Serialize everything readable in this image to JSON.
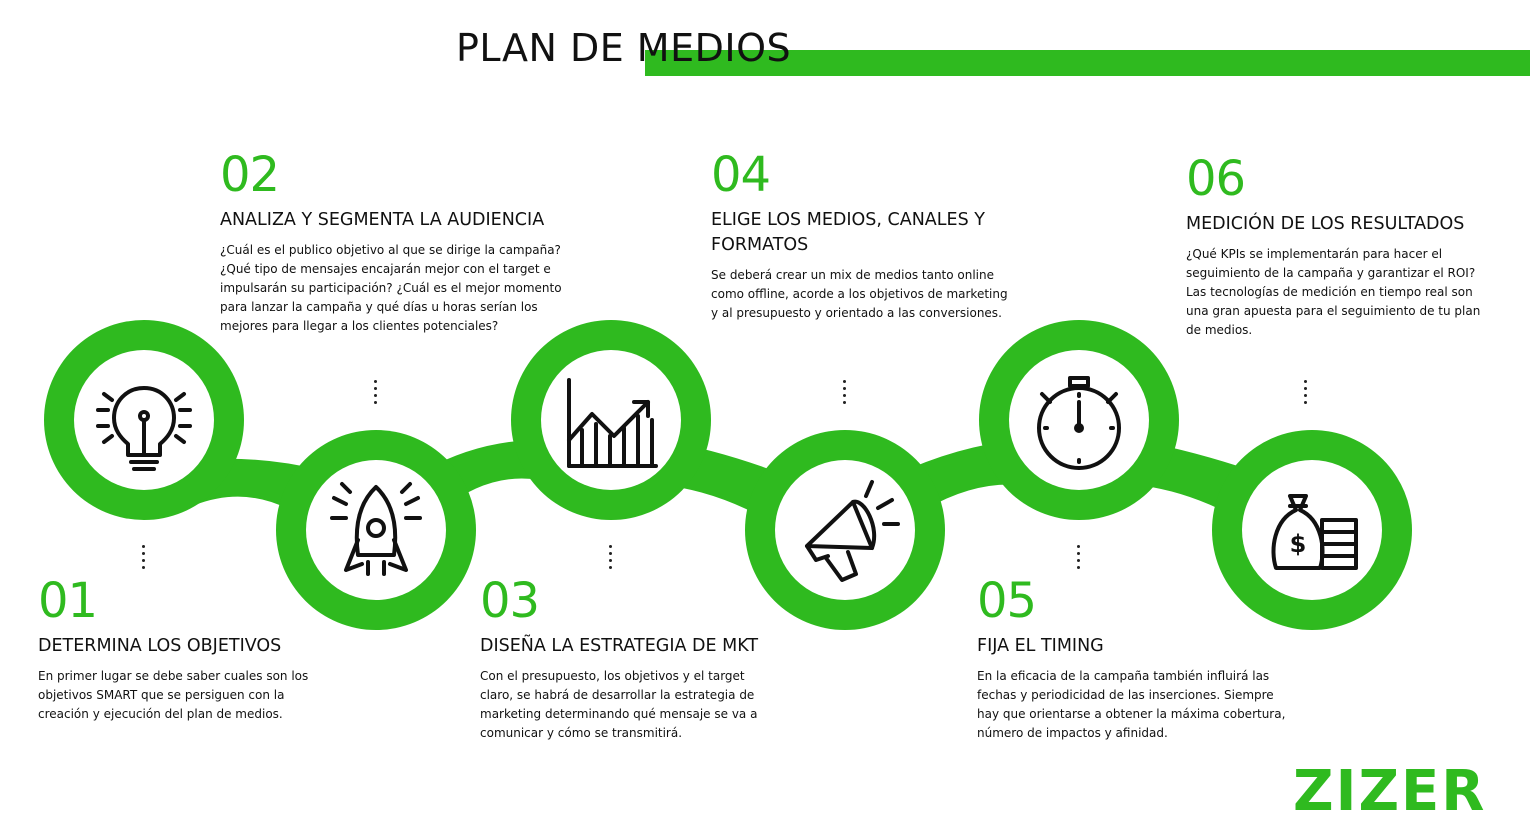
{
  "title": "PLAN DE MEDIOS",
  "colors": {
    "accent": "#2fba1f",
    "text": "#111111"
  },
  "steps": [
    {
      "num": "01",
      "title": "DETERMINA LOS OBJETIVOS",
      "desc": "En primer lugar se debe saber cuales son los objetivos SMART que se persiguen con la creación y ejecución del plan de medios.",
      "icon": "lightbulb-icon"
    },
    {
      "num": "02",
      "title": "ANALIZA Y SEGMENTA LA AUDIENCIA",
      "desc": "¿Cuál es el publico objetivo al que se dirige la campaña?¿Qué tipo de mensajes encajarán mejor con el target e impulsarán su participación? ¿Cuál es el mejor momento para lanzar la campaña y qué días u horas serían los mejores para llegar a los clientes potenciales?",
      "icon": "rocket-icon"
    },
    {
      "num": "03",
      "title": "DISEÑA LA ESTRATEGIA DE MKT",
      "desc": "Con el presupuesto, los objetivos y el target claro, se habrá de desarrollar la estrategia de marketing determinando qué mensaje se va a comunicar y cómo se transmitirá.",
      "icon": "growth-chart-icon"
    },
    {
      "num": "04",
      "title": "ELIGE LOS MEDIOS, CANALES Y FORMATOS",
      "desc": "Se deberá crear un mix de medios tanto online como offline, acorde a los objetivos de marketing y al presupuesto y orientado a las conversiones.",
      "icon": "megaphone-icon"
    },
    {
      "num": "05",
      "title": "FIJA EL TIMING",
      "desc": "En la eficacia de la campaña también influirá las fechas y periodicidad de las inserciones. Siempre hay que orientarse a obtener la máxima cobertura, número de impactos y afinidad.",
      "icon": "stopwatch-icon"
    },
    {
      "num": "06",
      "title": "MEDICIÓN DE LOS RESULTADOS",
      "desc": "¿Qué KPIs se implementarán para hacer el seguimiento de la campaña y garantizar el ROI? Las tecnologías de medición en tiempo real son una gran apuesta para el seguimiento de tu plan de medios.",
      "icon": "money-bag-icon"
    }
  ],
  "brand": "ZIZER"
}
